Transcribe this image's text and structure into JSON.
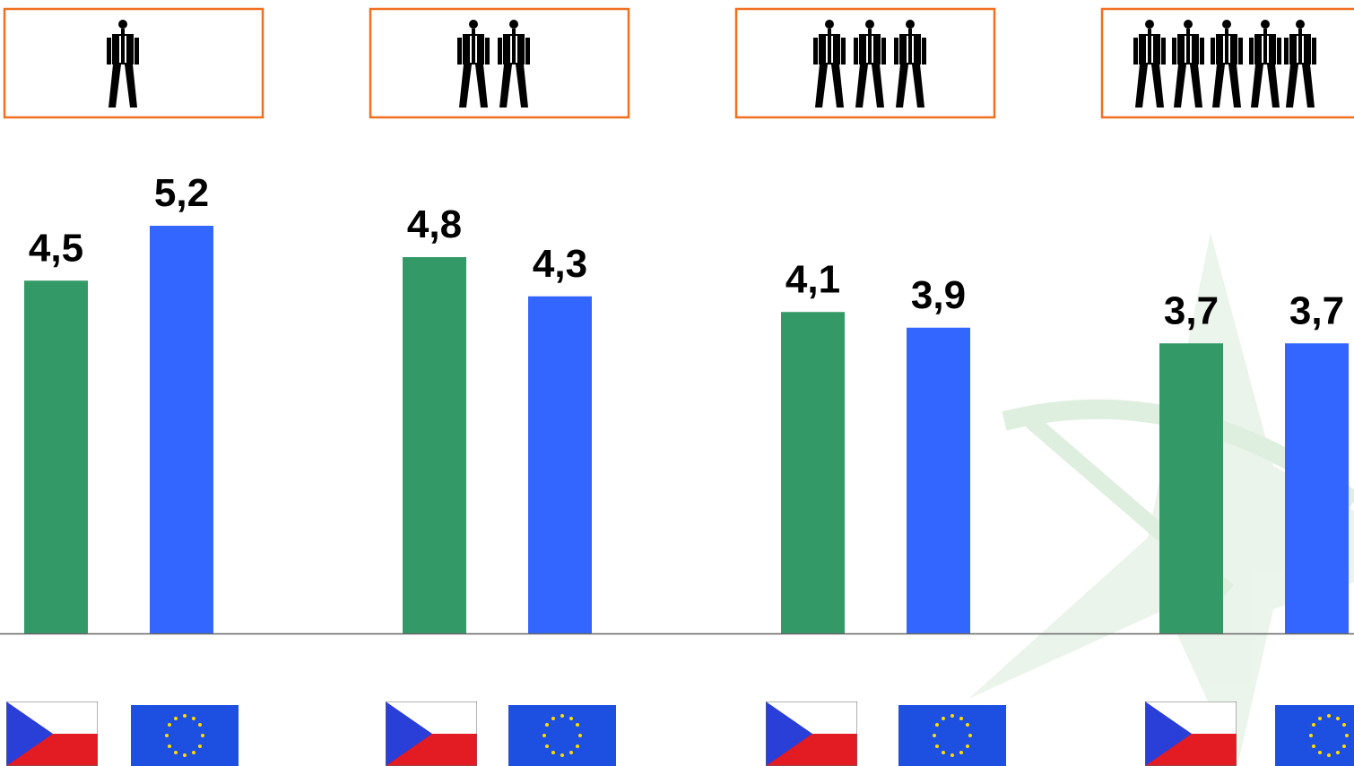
{
  "chart_data": {
    "type": "bar",
    "categories": [
      null,
      null,
      null,
      null
    ],
    "series": [
      {
        "color": "#339966",
        "values": [
          4.5,
          4.8,
          4.1,
          3.7
        ],
        "value_labels": [
          "4,5",
          "4,8",
          "4,1",
          "3,7"
        ]
      },
      {
        "color": "#3366ff",
        "values": [
          5.2,
          4.3,
          3.9,
          3.7
        ],
        "value_labels": [
          "5,2",
          "4,3",
          "3,9",
          "3,7"
        ]
      }
    ]
  }
}
